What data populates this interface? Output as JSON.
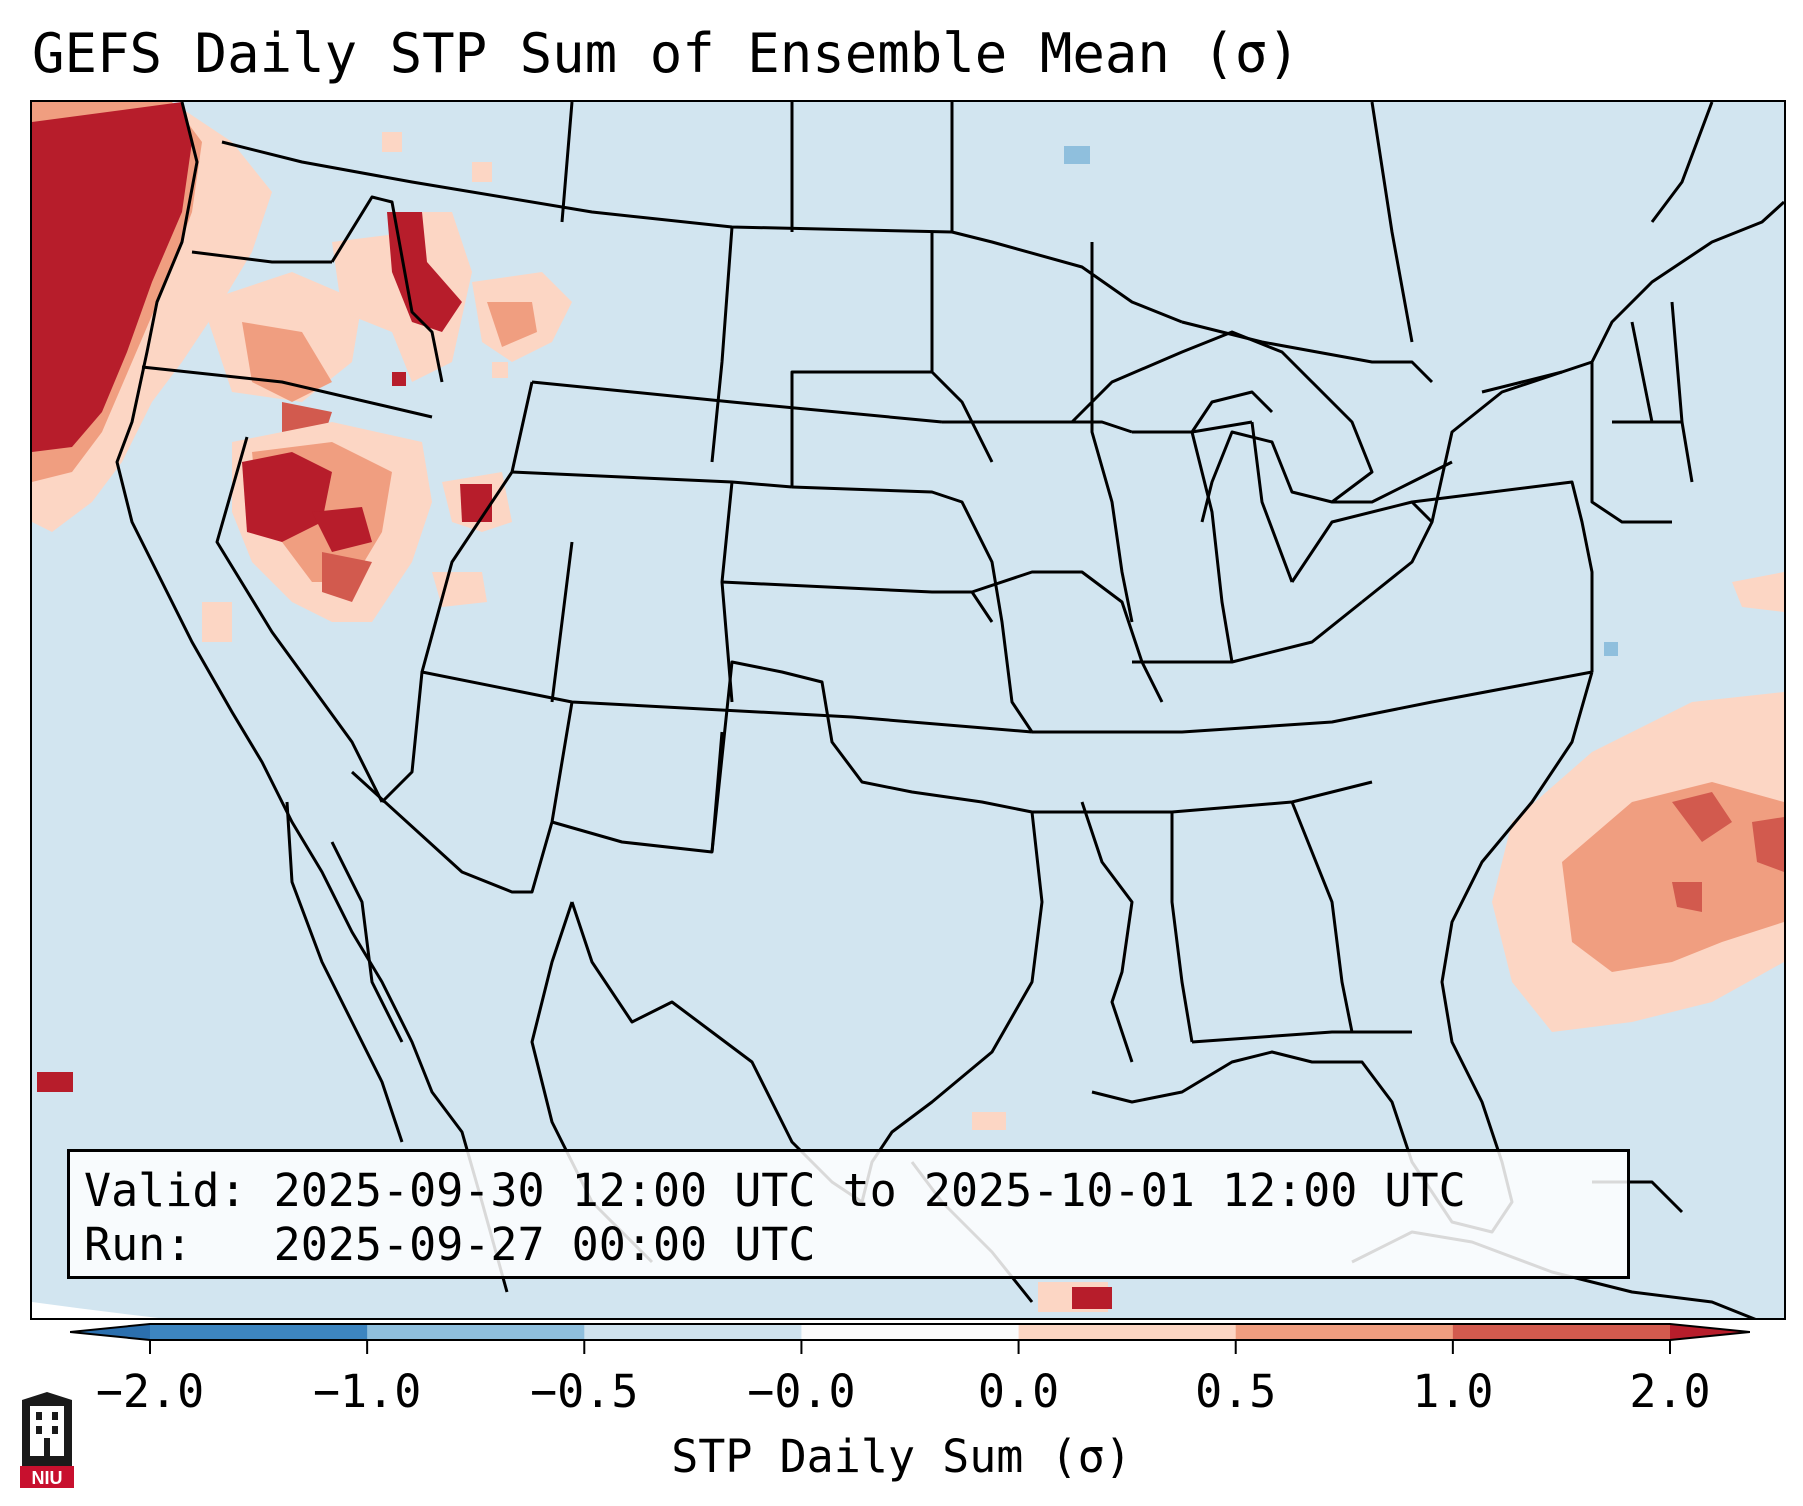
{
  "title": "GEFS Daily STP Sum of Ensemble Mean (σ)",
  "info": {
    "valid": "Valid: 2025-09-30 12:00 UTC to 2025-10-01 12:00 UTC",
    "run": "Run:   2025-09-27 00:00 UTC"
  },
  "colorbar": {
    "label": "STP Daily Sum (σ)",
    "ticks": [
      "−2.0",
      "−1.0",
      "−0.5",
      "−0.0",
      "0.0",
      "0.5",
      "1.0",
      "2.0"
    ],
    "colors": [
      "#3d85c0",
      "#8fbfdd",
      "#d0e3ef",
      "#fbfbfb",
      "#fcd6c4",
      "#f09e80",
      "#d25a4e"
    ],
    "under_color": "#2b6fae",
    "over_color": "#b71d2b"
  },
  "map": {
    "background": "#d2e5f0",
    "region": "Continental United States",
    "anomaly_colors": {
      "light": "#fcd6c4",
      "medium": "#f09e80",
      "strong": "#d25a4e",
      "max": "#b71d2b",
      "neg_light": "#8fbfdd"
    }
  },
  "logo": {
    "text": "NIU",
    "color": "#c8102e"
  }
}
